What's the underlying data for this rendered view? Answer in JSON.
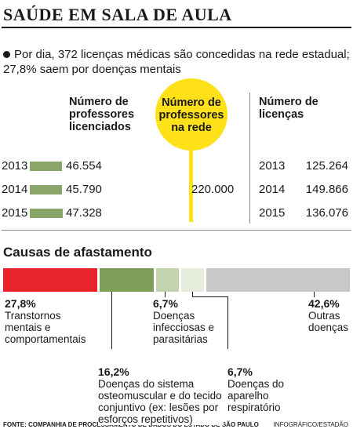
{
  "title": "SAÚDE EM SALA DE AULA",
  "lead": "Por dia, 372 licenças médicas são concedidas na rede estadual; 27,8% saem por doenças mentais",
  "chart_data": [
    {
      "type": "bar",
      "title": "Número de professores licenciados",
      "categories": [
        "2013",
        "2014",
        "2015"
      ],
      "values": [
        46554,
        45790,
        47328
      ],
      "value_labels": [
        "46.554",
        "45.790",
        "47.328"
      ],
      "color": "#8aa56a"
    },
    {
      "type": "stacked-bar",
      "title": "Causas de afastamento",
      "categories": [
        "Transtornos mentais e comportamentais",
        "Doenças do sistema osteomuscular e do tecido conjuntivo (ex: lesões por esforços repetitivos)",
        "Doenças infecciosas e parasitárias",
        "Doenças do aparelho respiratório",
        "Outras doenças"
      ],
      "values": [
        27.8,
        16.2,
        6.7,
        6.7,
        42.6
      ],
      "value_labels": [
        "27,8%",
        "16,2%",
        "6,7%",
        "6,7%",
        "42,6%"
      ],
      "colors": [
        "#e8232a",
        "#7f9e5a",
        "#c3d3ad",
        "#e6eddc",
        "#c8c8c8"
      ]
    }
  ],
  "network": {
    "label": "Número de professores na rede",
    "value": "220.000"
  },
  "licenses": {
    "label": "Número de licenças",
    "rows": [
      [
        "2013",
        "125.264"
      ],
      [
        "2014",
        "149.866"
      ],
      [
        "2015",
        "136.076"
      ]
    ]
  },
  "source": "FONTE: COMPANHIA DE PROCESSAMENTO DE DADOS DO ESTADO DE SÃO PAULO",
  "credit": "INFOGRÁFICO/ESTADÃO"
}
